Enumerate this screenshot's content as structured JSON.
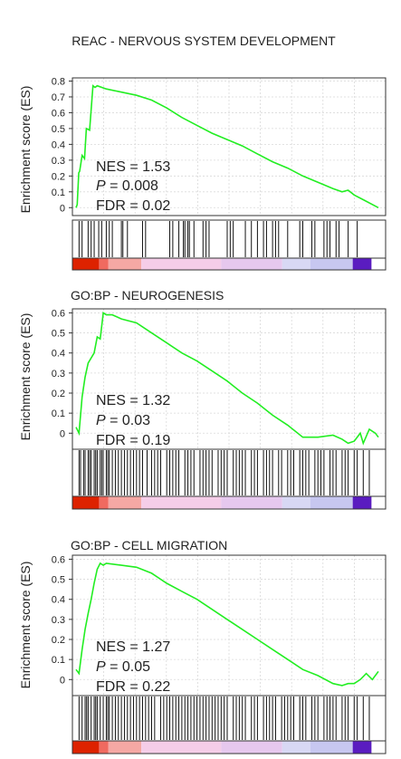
{
  "chart_data": [
    {
      "type": "line",
      "title": "REAC - NERVOUS SYSTEM DEVELOPMENT",
      "ylabel": "Enrichment score (ES)",
      "ylim": [
        -0.05,
        0.82
      ],
      "yticks": [
        "0.8",
        "0.7",
        "0.6",
        "0.5",
        "0.4",
        "0.3",
        "0.2",
        "0.1",
        "0"
      ],
      "ytick_values": [
        0.8,
        0.7,
        0.6,
        0.5,
        0.4,
        0.3,
        0.2,
        0.1,
        0
      ],
      "grid": true,
      "stats": {
        "nes": "NES = 1.53",
        "p_label": "P",
        "p_value": " = 0.008",
        "fdr": "FDR = 0.02"
      },
      "x": [
        0,
        0.004,
        0.009,
        0.012,
        0.02,
        0.028,
        0.034,
        0.045,
        0.056,
        0.063,
        0.07,
        0.1,
        0.15,
        0.2,
        0.25,
        0.3,
        0.35,
        0.4,
        0.45,
        0.5,
        0.55,
        0.6,
        0.65,
        0.7,
        0.75,
        0.8,
        0.85,
        0.88,
        0.9,
        0.92,
        0.95,
        1.0
      ],
      "values": [
        0,
        0.02,
        0.22,
        0.23,
        0.33,
        0.31,
        0.5,
        0.49,
        0.77,
        0.76,
        0.77,
        0.75,
        0.73,
        0.71,
        0.68,
        0.63,
        0.57,
        0.52,
        0.47,
        0.43,
        0.39,
        0.34,
        0.29,
        0.25,
        0.2,
        0.16,
        0.12,
        0.1,
        0.11,
        0.08,
        0.05,
        0.0
      ],
      "hits": [
        0.01,
        0.02,
        0.04,
        0.05,
        0.06,
        0.075,
        0.085,
        0.1,
        0.11,
        0.12,
        0.15,
        0.155,
        0.17,
        0.22,
        0.23,
        0.31,
        0.32,
        0.34,
        0.355,
        0.36,
        0.37,
        0.375,
        0.39,
        0.42,
        0.43,
        0.44,
        0.5,
        0.51,
        0.52,
        0.56,
        0.58,
        0.6,
        0.62,
        0.63,
        0.65,
        0.66,
        0.67,
        0.7,
        0.74,
        0.75,
        0.78,
        0.79,
        0.82,
        0.83,
        0.84,
        0.86,
        0.87,
        0.9,
        0.93
      ]
    },
    {
      "type": "line",
      "title": "GO:BP - NEUROGENESIS",
      "ylabel": "Enrichment score (ES)",
      "ylim": [
        -0.08,
        0.62
      ],
      "yticks": [
        "0.6",
        "0.5",
        "0.4",
        "0.3",
        "0.2",
        "0.1",
        "0"
      ],
      "ytick_values": [
        0.6,
        0.5,
        0.4,
        0.3,
        0.2,
        0.1,
        0
      ],
      "grid": true,
      "stats": {
        "nes": "NES = 1.32",
        "p_label": "P",
        "p_value": " = 0.03",
        "fdr": "FDR = 0.19"
      },
      "x": [
        0,
        0.01,
        0.02,
        0.03,
        0.04,
        0.06,
        0.07,
        0.08,
        0.09,
        0.1,
        0.12,
        0.15,
        0.2,
        0.25,
        0.3,
        0.35,
        0.4,
        0.45,
        0.5,
        0.55,
        0.6,
        0.65,
        0.7,
        0.75,
        0.8,
        0.85,
        0.88,
        0.9,
        0.92,
        0.94,
        0.95,
        0.97,
        0.99,
        1.0
      ],
      "values": [
        0.03,
        0.0,
        0.18,
        0.28,
        0.35,
        0.4,
        0.48,
        0.47,
        0.6,
        0.59,
        0.59,
        0.57,
        0.55,
        0.5,
        0.45,
        0.4,
        0.36,
        0.31,
        0.26,
        0.2,
        0.15,
        0.09,
        0.04,
        -0.02,
        -0.02,
        -0.01,
        -0.03,
        -0.05,
        -0.04,
        0.0,
        -0.05,
        0.02,
        0.0,
        -0.02
      ],
      "hits": [
        0.01,
        0.015,
        0.025,
        0.03,
        0.04,
        0.045,
        0.05,
        0.06,
        0.065,
        0.07,
        0.08,
        0.085,
        0.09,
        0.1,
        0.105,
        0.11,
        0.12,
        0.13,
        0.14,
        0.15,
        0.16,
        0.17,
        0.18,
        0.19,
        0.2,
        0.21,
        0.22,
        0.235,
        0.25,
        0.26,
        0.27,
        0.28,
        0.3,
        0.31,
        0.32,
        0.33,
        0.34,
        0.36,
        0.37,
        0.38,
        0.39,
        0.41,
        0.42,
        0.43,
        0.44,
        0.45,
        0.47,
        0.48,
        0.49,
        0.5,
        0.52,
        0.53,
        0.54,
        0.55,
        0.56,
        0.58,
        0.59,
        0.6,
        0.62,
        0.63,
        0.64,
        0.65,
        0.67,
        0.68,
        0.7,
        0.71,
        0.72,
        0.74,
        0.75,
        0.76,
        0.77,
        0.79,
        0.8,
        0.81,
        0.82,
        0.84,
        0.85,
        0.86,
        0.88,
        0.89,
        0.9,
        0.92,
        0.93,
        0.95,
        0.97
      ]
    },
    {
      "type": "line",
      "title": "GO:BP - CELL MIGRATION",
      "ylabel": "Enrichment score (ES)",
      "ylim": [
        -0.08,
        0.62
      ],
      "yticks": [
        "0.6",
        "0.5",
        "0.4",
        "0.3",
        "0.2",
        "0.1",
        "0"
      ],
      "ytick_values": [
        0.6,
        0.5,
        0.4,
        0.3,
        0.2,
        0.1,
        0
      ],
      "grid": true,
      "stats": {
        "nes": "NES = 1.27",
        "p_label": "P",
        "p_value": " = 0.05",
        "fdr": "FDR = 0.22"
      },
      "x": [
        0,
        0.01,
        0.02,
        0.03,
        0.04,
        0.05,
        0.06,
        0.07,
        0.08,
        0.09,
        0.1,
        0.15,
        0.2,
        0.25,
        0.3,
        0.35,
        0.4,
        0.45,
        0.5,
        0.55,
        0.6,
        0.65,
        0.7,
        0.75,
        0.8,
        0.85,
        0.88,
        0.9,
        0.92,
        0.94,
        0.96,
        0.98,
        1.0
      ],
      "values": [
        0.05,
        0.03,
        0.15,
        0.25,
        0.33,
        0.4,
        0.48,
        0.55,
        0.58,
        0.57,
        0.58,
        0.57,
        0.56,
        0.53,
        0.48,
        0.44,
        0.4,
        0.35,
        0.3,
        0.25,
        0.2,
        0.15,
        0.1,
        0.05,
        0.02,
        -0.02,
        -0.03,
        -0.02,
        -0.02,
        0.0,
        0.03,
        0.0,
        0.04
      ],
      "hits": [
        0.01,
        0.02,
        0.03,
        0.035,
        0.04,
        0.05,
        0.06,
        0.065,
        0.07,
        0.08,
        0.09,
        0.1,
        0.105,
        0.11,
        0.12,
        0.13,
        0.14,
        0.15,
        0.16,
        0.17,
        0.18,
        0.19,
        0.2,
        0.21,
        0.22,
        0.23,
        0.24,
        0.25,
        0.26,
        0.28,
        0.29,
        0.3,
        0.31,
        0.32,
        0.33,
        0.34,
        0.35,
        0.36,
        0.37,
        0.38,
        0.39,
        0.4,
        0.41,
        0.42,
        0.43,
        0.44,
        0.45,
        0.46,
        0.47,
        0.48,
        0.49,
        0.5,
        0.52,
        0.53,
        0.54,
        0.55,
        0.56,
        0.58,
        0.59,
        0.6,
        0.62,
        0.63,
        0.64,
        0.65,
        0.66,
        0.68,
        0.69,
        0.7,
        0.71,
        0.72,
        0.74,
        0.75,
        0.76,
        0.78,
        0.79,
        0.8,
        0.82,
        0.83,
        0.84,
        0.85,
        0.86,
        0.88,
        0.89,
        0.9,
        0.92,
        0.93,
        0.95,
        0.97
      ]
    }
  ],
  "colors": {
    "curve": "#22ee22",
    "grid": "#d9d9d9",
    "hit": "#111111",
    "rank_bar": [
      "#dd2200",
      "#f06a60",
      "#f5a8a4",
      "#f5cde8",
      "#e6c8ee",
      "#d8d8f4",
      "#c7c7f0",
      "#5a1cc0"
    ]
  }
}
